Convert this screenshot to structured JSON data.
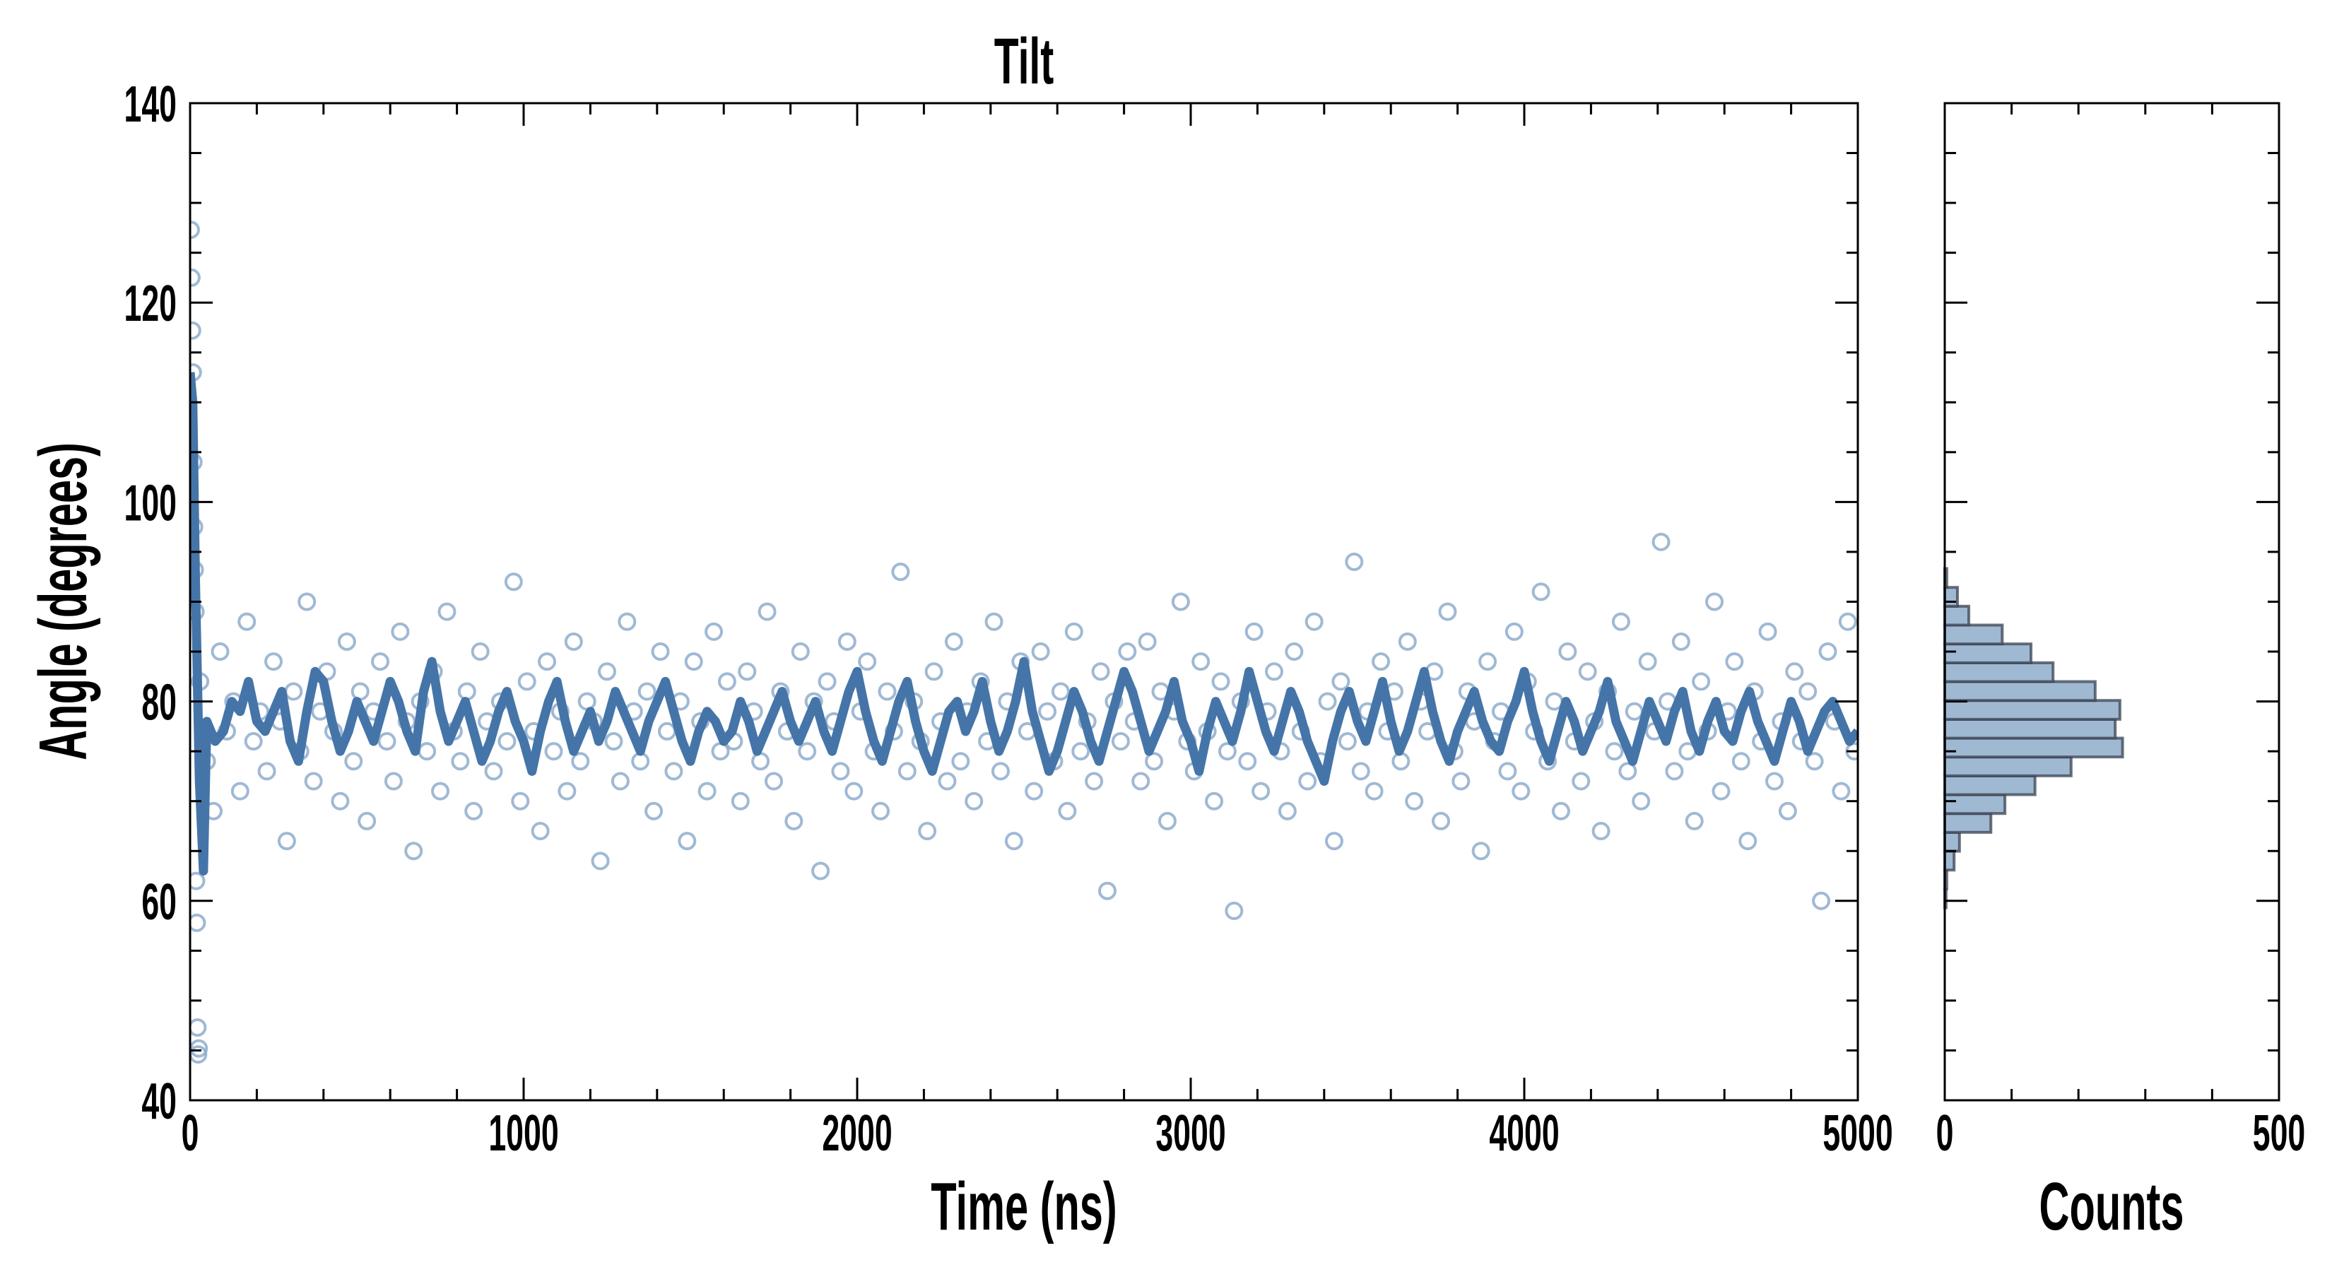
{
  "chart_data": [
    {
      "type": "scatter",
      "title": "Tilt",
      "xlabel": "Time (ns)",
      "ylabel": "Angle (degrees)",
      "xlim": [
        0,
        5000
      ],
      "ylim": [
        40,
        140
      ],
      "xticks": [
        0,
        1000,
        2000,
        3000,
        4000,
        5000
      ],
      "yticks": [
        40,
        60,
        80,
        100,
        120,
        140
      ],
      "grid": false,
      "colors": {
        "points": "#8fadcc",
        "line": "#4575a8"
      },
      "series": [
        {
          "name": "raw angle",
          "style": "open-circle",
          "early_points": [
            [
              2,
              127.3
            ],
            [
              4,
              122.5
            ],
            [
              6,
              117.2
            ],
            [
              8,
              113
            ],
            [
              10,
              104
            ],
            [
              12,
              97.5
            ],
            [
              14,
              93.2
            ],
            [
              16,
              89
            ],
            [
              18,
              62
            ],
            [
              20,
              57.8
            ],
            [
              22,
              47.3
            ],
            [
              24,
              44.6
            ],
            [
              26,
              45.2
            ]
          ],
          "x_start": 30,
          "x_step": 20,
          "values": [
            82,
            74,
            69,
            85,
            77,
            80,
            71,
            88,
            76,
            79,
            73,
            84,
            78,
            66,
            81,
            75,
            90,
            72,
            79,
            83,
            77,
            70,
            86,
            74,
            81,
            68,
            79,
            84,
            76,
            72,
            87,
            78,
            65,
            80,
            75,
            83,
            71,
            89,
            77,
            74,
            81,
            69,
            85,
            78,
            73,
            80,
            76,
            92,
            70,
            82,
            77,
            67,
            84,
            75,
            79,
            71,
            86,
            74,
            80,
            78,
            64,
            83,
            76,
            72,
            88,
            79,
            74,
            81,
            69,
            85,
            77,
            73,
            80,
            66,
            84,
            78,
            71,
            87,
            75,
            82,
            76,
            70,
            83,
            79,
            74,
            89,
            72,
            81,
            77,
            68,
            85,
            75,
            80,
            63,
            82,
            78,
            73,
            86,
            71,
            79,
            84,
            75,
            69,
            81,
            77,
            93,
            73,
            80,
            76,
            67,
            83,
            78,
            72,
            86,
            74,
            79,
            70,
            82,
            76,
            88,
            73,
            80,
            66,
            84,
            77,
            71,
            85,
            79,
            74,
            81,
            69,
            87,
            75,
            78,
            72,
            83,
            61,
            80,
            76,
            85,
            78,
            72,
            86,
            74,
            81,
            68,
            79,
            90,
            76,
            73,
            84,
            77,
            70,
            82,
            75,
            59,
            80,
            74,
            87,
            71,
            79,
            83,
            75,
            69,
            85,
            77,
            72,
            88,
            74,
            80,
            66,
            82,
            76,
            94,
            73,
            79,
            71,
            84,
            77,
            81,
            74,
            86,
            70,
            80,
            77,
            83,
            68,
            89,
            75,
            72,
            81,
            78,
            65,
            84,
            76,
            79,
            73,
            87,
            71,
            82,
            77,
            91,
            74,
            80,
            69,
            85,
            76,
            72,
            83,
            78,
            67,
            81,
            75,
            88,
            73,
            79,
            70,
            84,
            77,
            96,
            80,
            73,
            86,
            75,
            68,
            82,
            77,
            90,
            71,
            79,
            84,
            74,
            66,
            81,
            76,
            87,
            72,
            78,
            69,
            83,
            76,
            81,
            74,
            60,
            85,
            78,
            71,
            88,
            75,
            80,
            67,
            83,
            77,
            73,
            86,
            79,
            70,
            82,
            76,
            92
          ]
        },
        {
          "name": "running average",
          "style": "line",
          "early_points": [
            [
              0,
              113
            ],
            [
              8,
              110
            ],
            [
              16,
              92
            ],
            [
              28,
              72
            ],
            [
              40,
              63
            ]
          ],
          "x_start": 50,
          "x_step": 25,
          "values": [
            78,
            76,
            77,
            80,
            79,
            82,
            78,
            77,
            79,
            81,
            76,
            74,
            79,
            83,
            82,
            78,
            75,
            77,
            80,
            78,
            76,
            79,
            82,
            80,
            77,
            75,
            81,
            84,
            79,
            76,
            78,
            80,
            77,
            74,
            76,
            79,
            81,
            78,
            76,
            73,
            77,
            80,
            82,
            78,
            75,
            77,
            79,
            76,
            78,
            81,
            79,
            77,
            75,
            78,
            80,
            82,
            79,
            76,
            74,
            77,
            79,
            78,
            76,
            77,
            80,
            78,
            75,
            77,
            79,
            81,
            78,
            76,
            78,
            80,
            77,
            75,
            78,
            81,
            83,
            79,
            76,
            74,
            77,
            80,
            82,
            78,
            75,
            73,
            76,
            79,
            80,
            77,
            79,
            82,
            78,
            75,
            77,
            80,
            84,
            79,
            76,
            73,
            75,
            78,
            81,
            79,
            76,
            74,
            77,
            80,
            83,
            81,
            78,
            75,
            77,
            79,
            82,
            78,
            76,
            73,
            77,
            80,
            78,
            76,
            79,
            83,
            80,
            77,
            75,
            78,
            81,
            79,
            76,
            74,
            72,
            76,
            79,
            81,
            78,
            76,
            79,
            82,
            78,
            75,
            77,
            80,
            83,
            79,
            76,
            74,
            77,
            79,
            81,
            78,
            76,
            75,
            78,
            80,
            83,
            79,
            76,
            74,
            77,
            80,
            78,
            75,
            77,
            79,
            82,
            78,
            76,
            74,
            77,
            80,
            78,
            76,
            79,
            81,
            77,
            75,
            78,
            80,
            77,
            76,
            79,
            81,
            78,
            76,
            74,
            77,
            80,
            78,
            75,
            77,
            79,
            80,
            78,
            76,
            77,
            76
          ]
        }
      ]
    },
    {
      "type": "bar",
      "orientation": "horizontal",
      "xlabel": "Counts",
      "xlim": [
        0,
        500
      ],
      "ylim": [
        40,
        140
      ],
      "xticks": [
        0,
        500
      ],
      "colors": {
        "fill": "#a0b9d3",
        "edge": "#3a4350"
      },
      "bin_start": 59.31,
      "bin_width": 1.89,
      "counts": [
        2,
        3,
        14,
        22,
        69,
        90,
        135,
        189,
        266,
        255,
        262,
        225,
        162,
        129,
        86,
        36,
        19,
        3
      ]
    }
  ]
}
